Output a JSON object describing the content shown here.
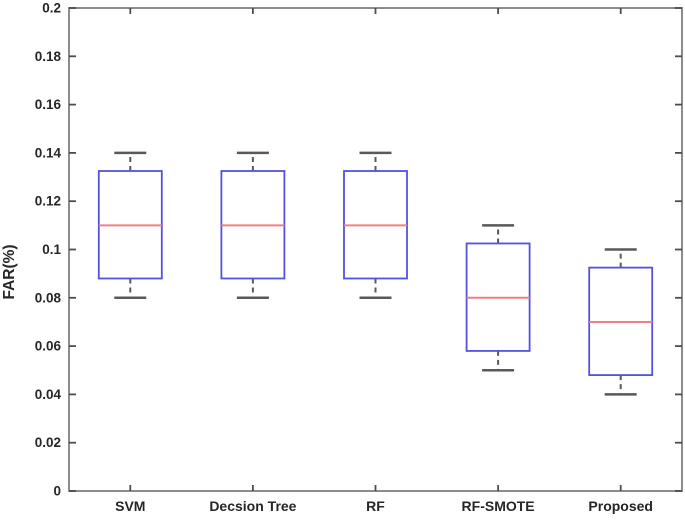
{
  "chart_data": {
    "type": "boxplot",
    "title": "",
    "xlabel": "",
    "ylabel": "FAR(%)",
    "ylim": [
      0,
      0.2
    ],
    "grid": false,
    "legend": null,
    "yticks": [
      {
        "v": 0.0,
        "label": "0"
      },
      {
        "v": 0.02,
        "label": "0.02"
      },
      {
        "v": 0.04,
        "label": "0.04"
      },
      {
        "v": 0.06,
        "label": "0.06"
      },
      {
        "v": 0.08,
        "label": "0.08"
      },
      {
        "v": 0.1,
        "label": "0.1"
      },
      {
        "v": 0.12,
        "label": "0.12"
      },
      {
        "v": 0.14,
        "label": "0.14"
      },
      {
        "v": 0.16,
        "label": "0.16"
      },
      {
        "v": 0.18,
        "label": "0.18"
      },
      {
        "v": 0.2,
        "label": "0.2"
      }
    ],
    "categories": [
      "SVM",
      "Decsion Tree",
      "RF",
      "RF-SMOTE",
      "Proposed"
    ],
    "series": [
      {
        "name": "SVM",
        "min": 0.08,
        "q1": 0.088,
        "median": 0.11,
        "q3": 0.1325,
        "max": 0.14
      },
      {
        "name": "Decsion Tree",
        "min": 0.08,
        "q1": 0.088,
        "median": 0.11,
        "q3": 0.1325,
        "max": 0.14
      },
      {
        "name": "RF",
        "min": 0.08,
        "q1": 0.088,
        "median": 0.11,
        "q3": 0.1325,
        "max": 0.14
      },
      {
        "name": "RF-SMOTE",
        "min": 0.05,
        "q1": 0.058,
        "median": 0.08,
        "q3": 0.1025,
        "max": 0.11
      },
      {
        "name": "Proposed",
        "min": 0.04,
        "q1": 0.048,
        "median": 0.07,
        "q3": 0.0925,
        "max": 0.1
      }
    ],
    "colors": {
      "box": "#5252e0",
      "median": "#f08080",
      "whisker": "#595959",
      "axis_frame": "#808080",
      "tick": "#4d4d4d",
      "tick_label": "#262626",
      "background": "#ffffff"
    }
  }
}
